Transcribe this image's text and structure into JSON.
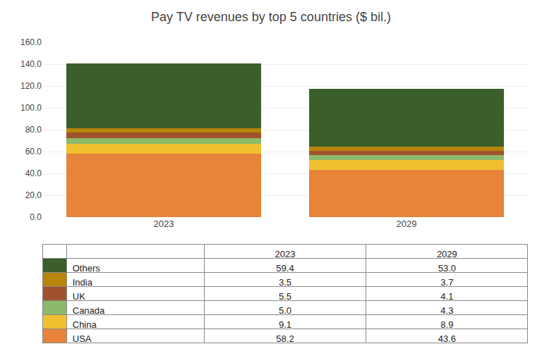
{
  "chart_data": {
    "type": "bar",
    "stacked": true,
    "title": "Pay TV revenues by top 5 countries ($ bil.)",
    "categories": [
      "2023",
      "2029"
    ],
    "series": [
      {
        "name": "USA",
        "color": "#E8833A",
        "values": [
          58.2,
          43.6
        ],
        "value_labels": [
          "58.2",
          "43.6"
        ]
      },
      {
        "name": "China",
        "color": "#F0C030",
        "values": [
          9.1,
          8.9
        ],
        "value_labels": [
          "9.1",
          "8.9"
        ]
      },
      {
        "name": "Canada",
        "color": "#8DB96A",
        "values": [
          5.0,
          4.3
        ],
        "value_labels": [
          "5.0",
          "4.3"
        ]
      },
      {
        "name": "UK",
        "color": "#A0522D",
        "values": [
          5.5,
          4.1
        ],
        "value_labels": [
          "5.5",
          "4.1"
        ]
      },
      {
        "name": "India",
        "color": "#B8860B",
        "values": [
          3.5,
          3.7
        ],
        "value_labels": [
          "3.5",
          "3.7"
        ]
      },
      {
        "name": "Others",
        "color": "#3A5F2A",
        "values": [
          59.4,
          53.0
        ],
        "value_labels": [
          "59.4",
          "53.0"
        ]
      }
    ],
    "ylim": [
      0,
      160
    ],
    "yticks": [
      {
        "value": 0,
        "label": "0.0"
      },
      {
        "value": 20,
        "label": "20.0"
      },
      {
        "value": 40,
        "label": "40.0"
      },
      {
        "value": 60,
        "label": "60.0"
      },
      {
        "value": 80,
        "label": "80.0"
      },
      {
        "value": 100,
        "label": "100.0"
      },
      {
        "value": 120,
        "label": "120.0"
      },
      {
        "value": 140,
        "label": "140.0"
      },
      {
        "value": 160,
        "label": "160.0"
      }
    ],
    "grid": true
  }
}
